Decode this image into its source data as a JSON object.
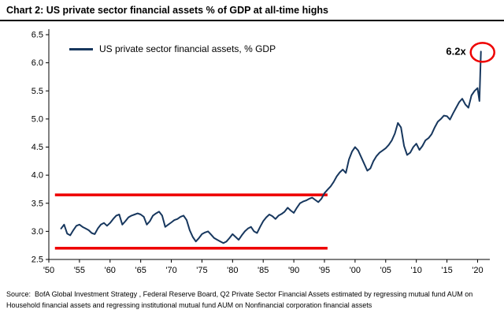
{
  "header": {
    "title": "Chart 2: US private sector financial assets % of GDP at all-time highs"
  },
  "legend": {
    "label": "US private sector financial assets, % GDP"
  },
  "source": {
    "prefix": "Source:",
    "text": "BofA Global Investment Strategy , Federal Reserve Board, Q2 Private Sector Financial Assets estimated by regressing mutual fund AUM on Household financial assets and regressing institutional mutual fund AUM on Nonfinancial corporation financial assets"
  },
  "chart_data": {
    "type": "line",
    "title": "Chart 2: US private sector financial assets % of GDP at all-time highs",
    "xlabel": "",
    "ylabel": "",
    "xlim": [
      1950,
      2022
    ],
    "ylim": [
      2.5,
      6.5
    ],
    "grid": false,
    "legend_position": "top-left",
    "colors": {
      "line": "#17375e",
      "reference": "#ee0000"
    },
    "yticks": [
      2.5,
      3.0,
      3.5,
      4.0,
      4.5,
      5.0,
      5.5,
      6.0,
      6.5
    ],
    "xticks": [
      {
        "value": 1950,
        "label": "'50"
      },
      {
        "value": 1955,
        "label": "'55"
      },
      {
        "value": 1960,
        "label": "'60"
      },
      {
        "value": 1965,
        "label": "'65"
      },
      {
        "value": 1970,
        "label": "'70"
      },
      {
        "value": 1975,
        "label": "'75"
      },
      {
        "value": 1980,
        "label": "'80"
      },
      {
        "value": 1985,
        "label": "'85"
      },
      {
        "value": 1990,
        "label": "'90"
      },
      {
        "value": 1995,
        "label": "'95"
      },
      {
        "value": 2000,
        "label": "'00"
      },
      {
        "value": 2005,
        "label": "'05"
      },
      {
        "value": 2010,
        "label": "'10"
      },
      {
        "value": 2015,
        "label": "'15"
      },
      {
        "value": 2020,
        "label": "'20"
      }
    ],
    "reference_lines": [
      {
        "y": 3.65,
        "x1": 1951,
        "x2": 1995.5
      },
      {
        "y": 2.7,
        "x1": 1951,
        "x2": 1995.5
      }
    ],
    "annotation": {
      "label": "6.2x",
      "x": 2020.55,
      "y": 6.2
    },
    "series": [
      {
        "name": "US private sector financial assets, % GDP",
        "points": [
          [
            1952,
            3.05
          ],
          [
            1952.5,
            3.12
          ],
          [
            1953,
            2.96
          ],
          [
            1953.5,
            2.93
          ],
          [
            1954,
            3.02
          ],
          [
            1954.5,
            3.1
          ],
          [
            1955,
            3.12
          ],
          [
            1955.5,
            3.08
          ],
          [
            1956,
            3.05
          ],
          [
            1956.5,
            3.02
          ],
          [
            1957,
            2.97
          ],
          [
            1957.5,
            2.95
          ],
          [
            1958,
            3.05
          ],
          [
            1958.5,
            3.12
          ],
          [
            1959,
            3.15
          ],
          [
            1959.5,
            3.1
          ],
          [
            1960,
            3.15
          ],
          [
            1960.5,
            3.22
          ],
          [
            1961,
            3.28
          ],
          [
            1961.5,
            3.3
          ],
          [
            1962,
            3.12
          ],
          [
            1962.5,
            3.18
          ],
          [
            1963,
            3.25
          ],
          [
            1963.5,
            3.28
          ],
          [
            1964,
            3.3
          ],
          [
            1964.5,
            3.32
          ],
          [
            1965,
            3.3
          ],
          [
            1965.5,
            3.26
          ],
          [
            1966,
            3.12
          ],
          [
            1966.5,
            3.18
          ],
          [
            1967,
            3.28
          ],
          [
            1967.5,
            3.32
          ],
          [
            1968,
            3.35
          ],
          [
            1968.5,
            3.28
          ],
          [
            1969,
            3.08
          ],
          [
            1969.5,
            3.12
          ],
          [
            1970,
            3.16
          ],
          [
            1970.5,
            3.2
          ],
          [
            1971,
            3.22
          ],
          [
            1971.5,
            3.26
          ],
          [
            1972,
            3.28
          ],
          [
            1972.5,
            3.2
          ],
          [
            1973,
            3.02
          ],
          [
            1973.5,
            2.9
          ],
          [
            1974,
            2.82
          ],
          [
            1974.5,
            2.88
          ],
          [
            1975,
            2.95
          ],
          [
            1975.5,
            2.98
          ],
          [
            1976,
            3.0
          ],
          [
            1976.5,
            2.94
          ],
          [
            1977,
            2.88
          ],
          [
            1977.5,
            2.85
          ],
          [
            1978,
            2.82
          ],
          [
            1978.5,
            2.79
          ],
          [
            1979,
            2.82
          ],
          [
            1979.5,
            2.88
          ],
          [
            1980,
            2.95
          ],
          [
            1980.5,
            2.9
          ],
          [
            1981,
            2.85
          ],
          [
            1981.5,
            2.93
          ],
          [
            1982,
            3.0
          ],
          [
            1982.5,
            3.05
          ],
          [
            1983,
            3.08
          ],
          [
            1983.5,
            3.0
          ],
          [
            1984,
            2.97
          ],
          [
            1984.5,
            3.08
          ],
          [
            1985,
            3.18
          ],
          [
            1985.5,
            3.25
          ],
          [
            1986,
            3.3
          ],
          [
            1986.5,
            3.27
          ],
          [
            1987,
            3.22
          ],
          [
            1987.5,
            3.28
          ],
          [
            1988,
            3.31
          ],
          [
            1988.5,
            3.35
          ],
          [
            1989,
            3.42
          ],
          [
            1989.5,
            3.37
          ],
          [
            1990,
            3.33
          ],
          [
            1990.5,
            3.42
          ],
          [
            1991,
            3.5
          ],
          [
            1991.5,
            3.53
          ],
          [
            1992,
            3.55
          ],
          [
            1992.5,
            3.58
          ],
          [
            1993,
            3.6
          ],
          [
            1993.5,
            3.56
          ],
          [
            1994,
            3.52
          ],
          [
            1994.5,
            3.58
          ],
          [
            1995,
            3.68
          ],
          [
            1995.5,
            3.74
          ],
          [
            1996,
            3.8
          ],
          [
            1996.5,
            3.88
          ],
          [
            1997,
            3.98
          ],
          [
            1997.5,
            4.05
          ],
          [
            1998,
            4.1
          ],
          [
            1998.5,
            4.04
          ],
          [
            1999,
            4.28
          ],
          [
            1999.5,
            4.42
          ],
          [
            2000,
            4.5
          ],
          [
            2000.5,
            4.44
          ],
          [
            2001,
            4.32
          ],
          [
            2001.5,
            4.2
          ],
          [
            2002,
            4.08
          ],
          [
            2002.5,
            4.12
          ],
          [
            2003,
            4.25
          ],
          [
            2003.5,
            4.34
          ],
          [
            2004,
            4.4
          ],
          [
            2004.5,
            4.44
          ],
          [
            2005,
            4.48
          ],
          [
            2005.5,
            4.54
          ],
          [
            2006,
            4.62
          ],
          [
            2006.5,
            4.74
          ],
          [
            2007,
            4.93
          ],
          [
            2007.5,
            4.85
          ],
          [
            2008,
            4.52
          ],
          [
            2008.5,
            4.36
          ],
          [
            2009,
            4.4
          ],
          [
            2009.5,
            4.5
          ],
          [
            2010,
            4.56
          ],
          [
            2010.5,
            4.45
          ],
          [
            2011,
            4.52
          ],
          [
            2011.5,
            4.62
          ],
          [
            2012,
            4.66
          ],
          [
            2012.5,
            4.73
          ],
          [
            2013,
            4.85
          ],
          [
            2013.5,
            4.95
          ],
          [
            2014,
            5.0
          ],
          [
            2014.5,
            5.06
          ],
          [
            2015,
            5.05
          ],
          [
            2015.5,
            4.99
          ],
          [
            2016,
            5.1
          ],
          [
            2016.5,
            5.2
          ],
          [
            2017,
            5.3
          ],
          [
            2017.5,
            5.36
          ],
          [
            2018,
            5.26
          ],
          [
            2018.5,
            5.2
          ],
          [
            2019,
            5.42
          ],
          [
            2019.5,
            5.5
          ],
          [
            2020,
            5.55
          ],
          [
            2020.3,
            5.32
          ],
          [
            2020.55,
            6.2
          ]
        ]
      }
    ]
  }
}
